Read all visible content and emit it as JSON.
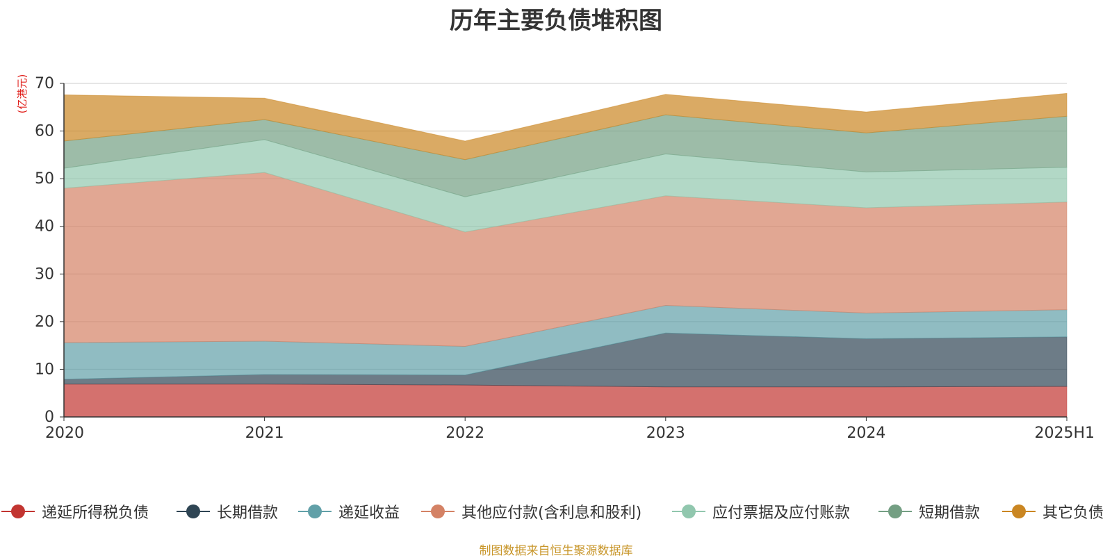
{
  "chart_data": {
    "type": "area",
    "stacked": true,
    "title": "历年主要负债堆积图",
    "ylabel": "(亿港元)",
    "xlabel": "",
    "ylim": [
      0,
      70
    ],
    "yticks": [
      "0",
      "10",
      "20",
      "30",
      "40",
      "50",
      "60",
      "70"
    ],
    "categories": [
      "2020",
      "2021",
      "2022",
      "2023",
      "2024",
      "2025H1"
    ],
    "grid": true,
    "legend_position": "bottom",
    "series": [
      {
        "name": "递延所得税负债",
        "color": "#c23531",
        "values": [
          6.9,
          6.9,
          6.7,
          6.3,
          6.3,
          6.4
        ]
      },
      {
        "name": "长期借款",
        "color": "#2f4554",
        "values": [
          1.0,
          2.0,
          2.1,
          11.3,
          10.1,
          10.4
        ]
      },
      {
        "name": "递延收益",
        "color": "#61a0a8",
        "values": [
          7.7,
          7.0,
          6.0,
          5.8,
          5.4,
          5.7
        ]
      },
      {
        "name": "其他应付款(含利息和股利)",
        "color": "#d48265",
        "values": [
          32.4,
          35.4,
          24.0,
          23.0,
          22.1,
          22.6
        ]
      },
      {
        "name": "应付票据及应付账款",
        "color": "#91c7ae",
        "values": [
          4.2,
          6.9,
          7.4,
          8.8,
          7.5,
          7.3
        ]
      },
      {
        "name": "短期借款",
        "color": "#749f83",
        "values": [
          5.7,
          4.2,
          7.8,
          8.2,
          8.2,
          10.7
        ]
      },
      {
        "name": "其它负债",
        "color": "#ca8622",
        "values": [
          9.7,
          4.5,
          3.9,
          4.3,
          4.4,
          4.8
        ]
      }
    ]
  },
  "footer": {
    "source": "制图数据来自恒生聚源数据库"
  }
}
